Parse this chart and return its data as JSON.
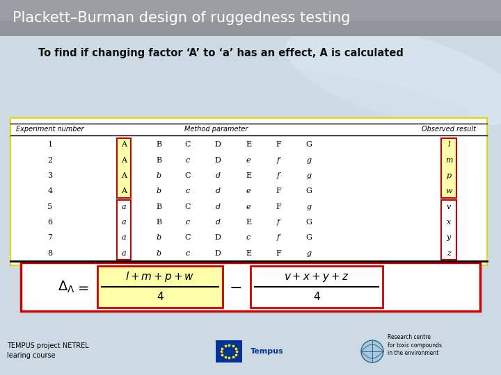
{
  "title": "Plackett–Burman design of ruggedness testing",
  "subtitle": "To find if changing factor ‘A’ to ‘a’ has an effect, A is calculated",
  "title_bg_top": "#e8edf2",
  "title_bg_bottom": "#9aa0a8",
  "title_color": "#ffffff",
  "slide_bg": "#c8d8e5",
  "yellow_highlight": "#ffffaa",
  "red_border": "#cc0000",
  "header_row": [
    "Experiment number",
    "Method parameter",
    "Observed result"
  ],
  "rows": [
    [
      "1",
      "A",
      "B",
      "C",
      "D",
      "E",
      "F",
      "G",
      "l"
    ],
    [
      "2",
      "A",
      "B",
      "c",
      "D",
      "e",
      "f",
      "g",
      "m"
    ],
    [
      "3",
      "A",
      "b",
      "C",
      "d",
      "E",
      "f",
      "g",
      "p"
    ],
    [
      "4",
      "A",
      "b",
      "c",
      "d",
      "e",
      "F",
      "G",
      "w"
    ],
    [
      "5",
      "a",
      "B",
      "C",
      "d",
      "e",
      "F",
      "g",
      "v"
    ],
    [
      "6",
      "a",
      "B",
      "c",
      "d",
      "E",
      "f",
      "G",
      "x"
    ],
    [
      "7",
      "a",
      "b",
      "C",
      "D",
      "c",
      "f",
      "G",
      "y"
    ],
    [
      "8",
      "a",
      "b",
      "c",
      "D",
      "E",
      "F",
      "g",
      "z"
    ]
  ],
  "footer_left": "TEMPUS project NETREL\nlearing course"
}
